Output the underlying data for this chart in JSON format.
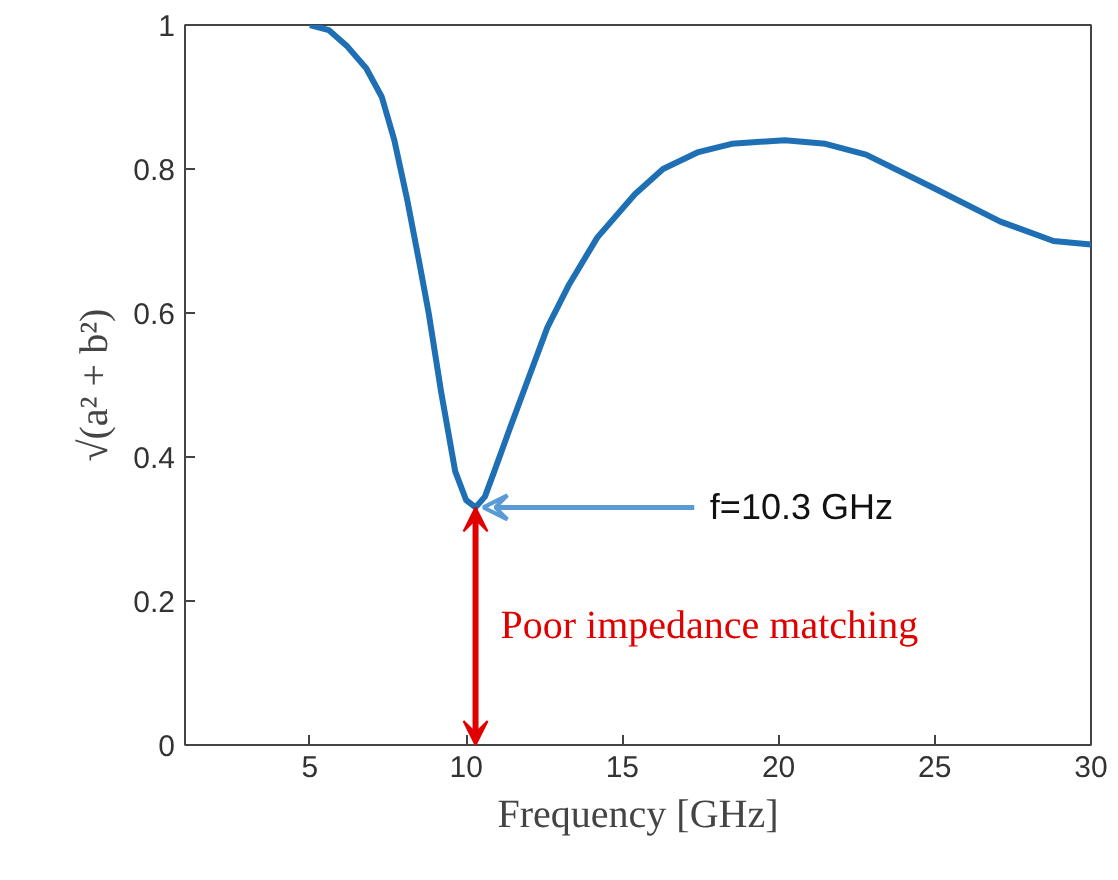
{
  "chart_data": {
    "type": "line",
    "xlabel": "Frequency [GHz]",
    "ylabel": "√(a² + b²)",
    "x": [
      5,
      5.6,
      6.2,
      6.8,
      7.3,
      7.7,
      8.1,
      8.5,
      8.8,
      9.2,
      9.65,
      10.0,
      10.3,
      10.6,
      10.9,
      11.4,
      12.0,
      12.6,
      13.3,
      14.2,
      15.4,
      16.3,
      17.4,
      18.5,
      20.2,
      21.5,
      22.8,
      24.9,
      27.1,
      28.8,
      30
    ],
    "series": [
      {
        "color": "#1f6fb5",
        "values": [
          1.0,
          0.993,
          0.97,
          0.94,
          0.9,
          0.84,
          0.76,
          0.67,
          0.6,
          0.49,
          0.38,
          0.34,
          0.33,
          0.345,
          0.38,
          0.44,
          0.51,
          0.58,
          0.64,
          0.705,
          0.765,
          0.8,
          0.823,
          0.835,
          0.84,
          0.835,
          0.82,
          0.775,
          0.727,
          0.7,
          0.695
        ]
      }
    ],
    "xlim": [
      1,
      30
    ],
    "ylim": [
      0,
      1
    ],
    "xticks": [
      5,
      10,
      15,
      20,
      25,
      30
    ],
    "yticks": [
      0,
      0.2,
      0.4,
      0.6,
      0.8,
      1
    ],
    "grid": false,
    "marker": "none",
    "line_style": "solid",
    "annotations": [
      {
        "text": "f=10.3 GHz",
        "x": 10.3,
        "y": 0.33
      },
      "Poor impedance matching"
    ]
  }
}
